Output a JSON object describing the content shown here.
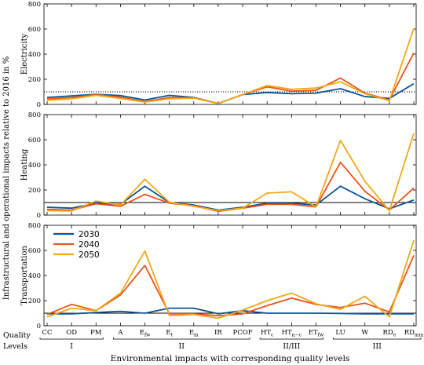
{
  "figure": {
    "outer_ylabel": "Infrastructural and operational impacts relative to 2016 in %",
    "xlabel": "Environmental impacts with corresponding quality levels",
    "quality_label_line1": "Quality",
    "quality_label_line2": "Levels"
  },
  "chart_data": {
    "type": "line",
    "categories": [
      {
        "base": "CC",
        "sub": ""
      },
      {
        "base": "OD",
        "sub": ""
      },
      {
        "base": "PM",
        "sub": ""
      },
      {
        "base": "A",
        "sub": ""
      },
      {
        "base": "E",
        "sub": "fw"
      },
      {
        "base": "E",
        "sub": "t"
      },
      {
        "base": "E",
        "sub": "m"
      },
      {
        "base": "IR",
        "sub": ""
      },
      {
        "base": "PCOF",
        "sub": ""
      },
      {
        "base": "HT",
        "sub": "c"
      },
      {
        "base": "HT",
        "sub": "n−c"
      },
      {
        "base": "ET",
        "sub": "fw"
      },
      {
        "base": "LU",
        "sub": ""
      },
      {
        "base": "W",
        "sub": ""
      },
      {
        "base": "RD",
        "sub": "e"
      },
      {
        "base": "RD",
        "sub": "mm"
      }
    ],
    "quality_levels": [
      {
        "label": "I",
        "from": 0,
        "to": 2
      },
      {
        "label": "II",
        "from": 3,
        "to": 8
      },
      {
        "label": "II/III",
        "from": 9,
        "to": 11
      },
      {
        "label": "III",
        "from": 12,
        "to": 15
      }
    ],
    "legend": {
      "placement": "upper-left of bottom panel",
      "entries": [
        "2030",
        "2040",
        "2050"
      ]
    },
    "colors": {
      "2030": "#0b5395",
      "2040": "#e8541a",
      "2050": "#f0a818",
      "reference": "#000000"
    },
    "panels": [
      {
        "ylabel": "Electricity",
        "ylim": [
          0,
          800
        ],
        "yticks": [
          "0",
          "200",
          "400",
          "600",
          "800"
        ],
        "reference": {
          "value": 100,
          "style": "dotted"
        },
        "series": [
          {
            "name": "2030",
            "values": [
              55,
              68,
              80,
              70,
              35,
              72,
              55,
              8,
              78,
              95,
              85,
              90,
              125,
              62,
              48,
              165
            ]
          },
          {
            "name": "2040",
            "values": [
              42,
              55,
              78,
              58,
              22,
              55,
              52,
              8,
              78,
              140,
              105,
              112,
              210,
              90,
              35,
              410
            ]
          },
          {
            "name": "2050",
            "values": [
              32,
              45,
              72,
              48,
              18,
              45,
              50,
              8,
              78,
              150,
              120,
              130,
              180,
              85,
              30,
              605
            ]
          }
        ]
      },
      {
        "ylabel": "Heating",
        "ylim": [
          0,
          800
        ],
        "yticks": [
          "0",
          "200",
          "400",
          "600",
          "800"
        ],
        "reference": {
          "value": 100,
          "style": "solid"
        },
        "series": [
          {
            "name": "2030",
            "values": [
              62,
              55,
              95,
              85,
              230,
              100,
              80,
              40,
              62,
              95,
              95,
              80,
              230,
              130,
              50,
              120
            ]
          },
          {
            "name": "2040",
            "values": [
              45,
              40,
              90,
              70,
              165,
              95,
              75,
              30,
              55,
              85,
              85,
              65,
              420,
              190,
              40,
              215
            ]
          },
          {
            "name": "2050",
            "values": [
              35,
              32,
              112,
              80,
              285,
              102,
              70,
              35,
              55,
              175,
              185,
              65,
              595,
              270,
              35,
              650
            ]
          }
        ]
      },
      {
        "ylabel": "Transportation",
        "ylim": [
          0,
          800
        ],
        "yticks": [
          "0",
          "200",
          "400",
          "600",
          "800"
        ],
        "reference": {
          "value": 100,
          "style": "solid"
        },
        "series": [
          {
            "name": "2030",
            "values": [
              95,
              95,
              105,
              115,
              100,
              140,
              140,
              95,
              120,
              100,
              100,
              100,
              98,
              95,
              95,
              95
            ]
          },
          {
            "name": "2040",
            "values": [
              90,
              170,
              120,
              245,
              480,
              95,
              95,
              80,
              95,
              160,
              220,
              170,
              145,
              180,
              110,
              560
            ]
          },
          {
            "name": "2050",
            "values": [
              70,
              140,
              120,
              260,
              595,
              80,
              90,
              60,
              125,
              200,
              260,
              175,
              130,
              235,
              70,
              680
            ]
          }
        ]
      }
    ]
  }
}
